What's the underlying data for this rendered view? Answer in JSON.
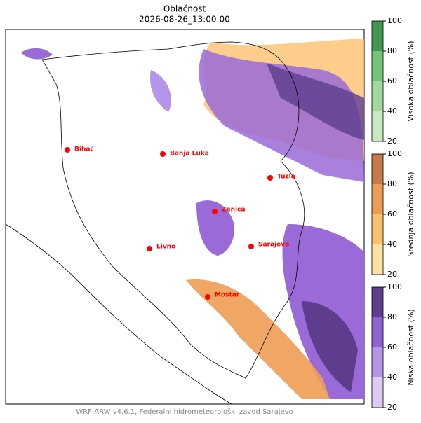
{
  "title": "Oblačnost",
  "subtitle": "2026-08-26_13:00:00",
  "footer": "WRF-ARW v4.6.1, Federalni hidrometeorološki zavod Sarajevo",
  "cities": [
    "Bihać",
    "Banja Luka",
    "Tuzla",
    "Zenica",
    "Livno",
    "Sarajevo",
    "Mostar"
  ],
  "colorbars": [
    {
      "label": "Visoka oblačnost (%)",
      "ticks": [
        20,
        40,
        60,
        80,
        100
      ],
      "colors": [
        "#c7e9c0",
        "#a1d99b",
        "#74c476",
        "#3f9a50"
      ]
    },
    {
      "label": "Srednja oblačnost (%)",
      "ticks": [
        20,
        40,
        60,
        80,
        100
      ],
      "colors": [
        "#fde3a0",
        "#fcc06e",
        "#ee9d55",
        "#c77a4a"
      ]
    },
    {
      "label": "Niska oblačnost (%)",
      "ticks": [
        20,
        40,
        60,
        80,
        100
      ],
      "colors": [
        "#dccaf7",
        "#b595ea",
        "#8f62d4",
        "#5e3d8e"
      ]
    }
  ]
}
